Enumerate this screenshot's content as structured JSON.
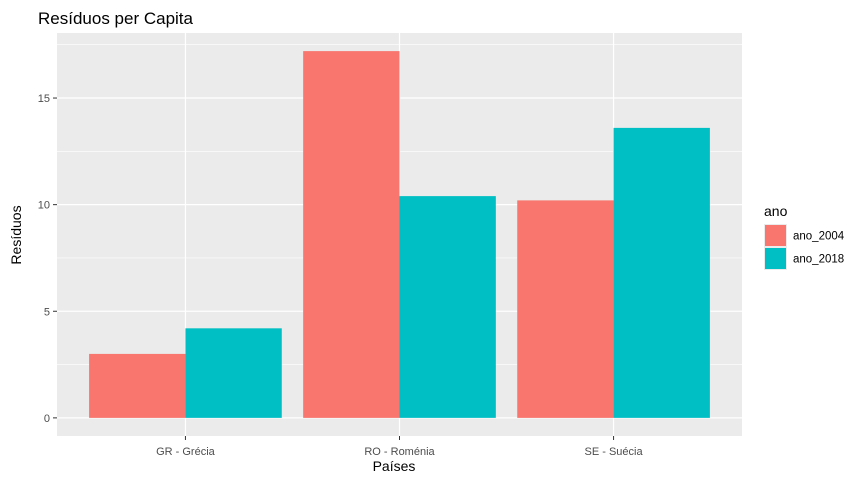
{
  "chart_data": {
    "type": "bar",
    "title": "Resíduos per Capita",
    "xlabel": "Países",
    "ylabel": "Resíduos",
    "categories": [
      "GR - Grécia",
      "RO - Roménia",
      "SE - Suécia"
    ],
    "series": [
      {
        "name": "ano_2004",
        "color": "#F8766D",
        "values": [
          3.0,
          17.2,
          10.2
        ]
      },
      {
        "name": "ano_2018",
        "color": "#00BFC4",
        "values": [
          4.2,
          10.4,
          13.6
        ]
      }
    ],
    "ylim": [
      -0.85,
      18.05
    ],
    "yticks": [
      0,
      5,
      10,
      15
    ],
    "grid": true,
    "panel_background": "#EBEBEB",
    "grid_color": "#FFFFFF",
    "legend": {
      "title": "ano",
      "position": "right"
    }
  }
}
